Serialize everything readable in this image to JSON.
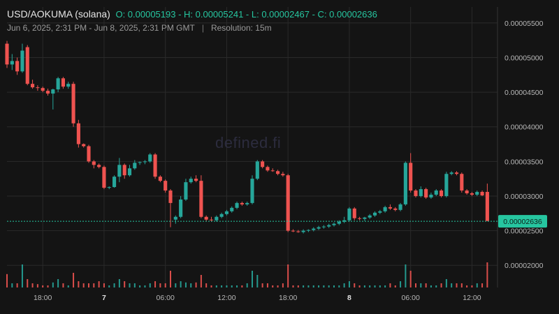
{
  "header": {
    "pair": "USD/AOKUMA (solana)",
    "ohlc": "O: 0.00005193 - H: 0.00005241 - L: 0.00002467 - C: 0.00002636",
    "range": "Jun 6, 2025, 2:31 PM - Jun 8, 2025, 2:31 PM GMT",
    "separator": "|",
    "resolution": "Resolution: 15m"
  },
  "watermark": "defined.fi",
  "colors": {
    "up": "#26a69a",
    "down": "#ef5350",
    "bg": "#141414",
    "grid": "#2a2a2a",
    "last": "#26c6a0"
  },
  "chart_data": {
    "type": "candlestick",
    "title": "USD/AOKUMA (solana)",
    "resolution": "15m",
    "last_price": 2.636e-05,
    "last_price_label": "0.00002636",
    "y_ticks": [
      "0.00005500",
      "0.00005000",
      "0.00004500",
      "0.00004000",
      "0.00003500",
      "0.00003000",
      "0.00002500",
      "0.00002000"
    ],
    "ylim": [
      1.68e-05,
      5.73e-05
    ],
    "x_ticks": [
      {
        "label": "18:00",
        "t": 3.5,
        "bold": false
      },
      {
        "label": "7",
        "t": 9.5,
        "bold": true
      },
      {
        "label": "06:00",
        "t": 15.5,
        "bold": false
      },
      {
        "label": "12:00",
        "t": 21.5,
        "bold": false
      },
      {
        "label": "18:00",
        "t": 27.5,
        "bold": false
      },
      {
        "label": "8",
        "t": 33.5,
        "bold": true
      },
      {
        "label": "06:00",
        "t": 39.5,
        "bold": false
      },
      {
        "label": "12:00",
        "t": 45.5,
        "bold": false
      }
    ],
    "xlim": [
      0,
      48
    ],
    "candles": [
      [
        0,
        5.2,
        5.24,
        4.85,
        4.9,
        0.32
      ],
      [
        0.5,
        4.9,
        5.05,
        4.82,
        4.95,
        0.1
      ],
      [
        1,
        4.95,
        5.0,
        4.75,
        4.8,
        0.1
      ],
      [
        1.5,
        4.8,
        5.2,
        4.78,
        5.1,
        0.55
      ],
      [
        2,
        5.15,
        5.18,
        4.6,
        4.62,
        0.2
      ],
      [
        2.5,
        4.62,
        4.68,
        4.55,
        4.57,
        0.1
      ],
      [
        3,
        4.57,
        4.6,
        4.52,
        4.56,
        0.08
      ],
      [
        3.5,
        4.56,
        4.58,
        4.5,
        4.52,
        0.05
      ],
      [
        4,
        4.52,
        4.55,
        4.45,
        4.48,
        0.05
      ],
      [
        4.5,
        4.48,
        4.55,
        4.25,
        4.54,
        0.12
      ],
      [
        5,
        4.54,
        4.72,
        4.5,
        4.7,
        0.2
      ],
      [
        5.5,
        4.7,
        4.72,
        4.55,
        4.58,
        0.1
      ],
      [
        6,
        4.58,
        4.65,
        4.55,
        4.62,
        0.05
      ],
      [
        6.5,
        4.62,
        4.65,
        4.0,
        4.05,
        0.35
      ],
      [
        7,
        4.05,
        4.1,
        3.7,
        3.75,
        0.15
      ],
      [
        7.5,
        3.75,
        3.76,
        3.7,
        3.72,
        0.1
      ],
      [
        8,
        3.72,
        3.74,
        3.48,
        3.5,
        0.1
      ],
      [
        8.5,
        3.5,
        3.52,
        3.4,
        3.45,
        0.1
      ],
      [
        9,
        3.45,
        3.47,
        3.4,
        3.42,
        0.15
      ],
      [
        9.5,
        3.42,
        3.44,
        3.1,
        3.12,
        0.1
      ],
      [
        10,
        3.12,
        3.14,
        3.1,
        3.13,
        0.05
      ],
      [
        10.5,
        3.13,
        3.3,
        3.12,
        3.28,
        0.1
      ],
      [
        11,
        3.28,
        3.55,
        3.2,
        3.45,
        0.2
      ],
      [
        11.5,
        3.45,
        3.47,
        3.25,
        3.3,
        0.15
      ],
      [
        12,
        3.3,
        3.45,
        3.28,
        3.4,
        0.1
      ],
      [
        12.5,
        3.4,
        3.52,
        3.38,
        3.48,
        0.1
      ],
      [
        13,
        3.48,
        3.5,
        3.45,
        3.49,
        0.05
      ],
      [
        13.5,
        3.49,
        3.52,
        3.46,
        3.5,
        0.05
      ],
      [
        14,
        3.5,
        3.62,
        3.48,
        3.6,
        0.1
      ],
      [
        14.5,
        3.6,
        3.62,
        3.25,
        3.28,
        0.15
      ],
      [
        15,
        3.28,
        3.3,
        3.2,
        3.22,
        0.1
      ],
      [
        15.5,
        3.22,
        3.24,
        3.05,
        3.08,
        0.1
      ],
      [
        16,
        3.08,
        3.1,
        2.55,
        2.9,
        0.4
      ],
      [
        16.5,
        2.66,
        2.72,
        2.6,
        2.7,
        0.1
      ],
      [
        17,
        2.7,
        3.0,
        2.68,
        2.95,
        0.15
      ],
      [
        17.5,
        2.95,
        3.25,
        2.93,
        3.2,
        0.12
      ],
      [
        18,
        3.2,
        3.28,
        3.18,
        3.25,
        0.1
      ],
      [
        18.5,
        3.25,
        3.3,
        3.2,
        3.22,
        0.12
      ],
      [
        19,
        3.22,
        3.3,
        2.68,
        2.7,
        0.3
      ],
      [
        19.5,
        2.7,
        2.72,
        2.64,
        2.66,
        0.1
      ],
      [
        20,
        2.66,
        2.7,
        2.63,
        2.65,
        0.05
      ],
      [
        20.5,
        2.65,
        2.72,
        2.63,
        2.7,
        0.05
      ],
      [
        21,
        2.7,
        2.76,
        2.68,
        2.74,
        0.05
      ],
      [
        21.5,
        2.74,
        2.8,
        2.72,
        2.78,
        0.05
      ],
      [
        22,
        2.78,
        2.85,
        2.76,
        2.83,
        0.05
      ],
      [
        22.5,
        2.83,
        2.92,
        2.81,
        2.9,
        0.05
      ],
      [
        23,
        2.9,
        2.92,
        2.86,
        2.88,
        0.05
      ],
      [
        23.5,
        2.88,
        2.92,
        2.86,
        2.9,
        0.1
      ],
      [
        24,
        2.9,
        3.3,
        2.88,
        3.25,
        0.4
      ],
      [
        24.5,
        3.25,
        3.52,
        3.23,
        3.5,
        0.3
      ],
      [
        25,
        3.5,
        3.52,
        3.4,
        3.42,
        0.1
      ],
      [
        25.5,
        3.42,
        3.44,
        3.35,
        3.37,
        0.1
      ],
      [
        26,
        3.37,
        3.4,
        3.35,
        3.36,
        0.05
      ],
      [
        26.5,
        3.36,
        3.38,
        3.3,
        3.32,
        0.05
      ],
      [
        27,
        3.32,
        3.35,
        3.28,
        3.3,
        0.1
      ],
      [
        27.5,
        3.3,
        3.32,
        2.48,
        2.5,
        0.55
      ],
      [
        28,
        2.5,
        2.52,
        2.48,
        2.49,
        0.05
      ],
      [
        28.5,
        2.49,
        2.51,
        2.47,
        2.48,
        0.05
      ],
      [
        29,
        2.48,
        2.52,
        2.46,
        2.5,
        0.05
      ],
      [
        29.5,
        2.5,
        2.52,
        2.48,
        2.51,
        0.05
      ],
      [
        30,
        2.51,
        2.55,
        2.49,
        2.53,
        0.05
      ],
      [
        30.5,
        2.53,
        2.57,
        2.51,
        2.55,
        0.05
      ],
      [
        31,
        2.55,
        2.58,
        2.53,
        2.56,
        0.05
      ],
      [
        31.5,
        2.56,
        2.6,
        2.54,
        2.58,
        0.05
      ],
      [
        32,
        2.58,
        2.62,
        2.56,
        2.6,
        0.05
      ],
      [
        32.5,
        2.6,
        2.65,
        2.58,
        2.63,
        0.05
      ],
      [
        33,
        2.63,
        2.7,
        2.61,
        2.65,
        0.1
      ],
      [
        33.5,
        2.65,
        2.84,
        2.63,
        2.82,
        0.15
      ],
      [
        34,
        2.82,
        2.84,
        2.65,
        2.68,
        0.1
      ],
      [
        34.5,
        2.68,
        2.7,
        2.65,
        2.67,
        0.05
      ],
      [
        35,
        2.67,
        2.7,
        2.64,
        2.69,
        0.05
      ],
      [
        35.5,
        2.69,
        2.74,
        2.67,
        2.72,
        0.05
      ],
      [
        36,
        2.72,
        2.78,
        2.7,
        2.76,
        0.05
      ],
      [
        36.5,
        2.76,
        2.8,
        2.74,
        2.78,
        0.05
      ],
      [
        37,
        2.78,
        2.86,
        2.76,
        2.84,
        0.05
      ],
      [
        37.5,
        2.84,
        2.88,
        2.8,
        2.82,
        0.1
      ],
      [
        38,
        2.82,
        2.84,
        2.78,
        2.8,
        0.05
      ],
      [
        38.5,
        2.8,
        2.9,
        2.78,
        2.88,
        0.15
      ],
      [
        39,
        2.88,
        3.5,
        2.86,
        3.48,
        0.55
      ],
      [
        39.5,
        3.48,
        3.62,
        3.05,
        3.08,
        0.4
      ],
      [
        40,
        3.08,
        3.1,
        2.98,
        3.0,
        0.1
      ],
      [
        40.5,
        3.0,
        3.14,
        2.98,
        3.1,
        0.1
      ],
      [
        41,
        3.1,
        3.12,
        2.96,
        2.98,
        0.1
      ],
      [
        41.5,
        2.98,
        3.05,
        2.96,
        3.02,
        0.05
      ],
      [
        42,
        3.02,
        3.1,
        3.0,
        3.08,
        0.05
      ],
      [
        42.5,
        3.08,
        3.1,
        2.98,
        3.0,
        0.1
      ],
      [
        43,
        3.0,
        3.35,
        2.98,
        3.32,
        0.2
      ],
      [
        43.5,
        3.32,
        3.36,
        3.3,
        3.34,
        0.1
      ],
      [
        44,
        3.34,
        3.36,
        3.3,
        3.32,
        0.1
      ],
      [
        44.5,
        3.32,
        3.34,
        3.05,
        3.08,
        0.1
      ],
      [
        45,
        3.08,
        3.1,
        3.02,
        3.04,
        0.05
      ],
      [
        45.5,
        3.04,
        3.06,
        3.0,
        3.02,
        0.05
      ],
      [
        46,
        3.02,
        3.08,
        3.0,
        3.06,
        0.1
      ],
      [
        46.5,
        3.06,
        3.08,
        3.0,
        3.01,
        0.1
      ],
      [
        47,
        3.06,
        3.18,
        2.64,
        2.64,
        0.6
      ]
    ]
  }
}
